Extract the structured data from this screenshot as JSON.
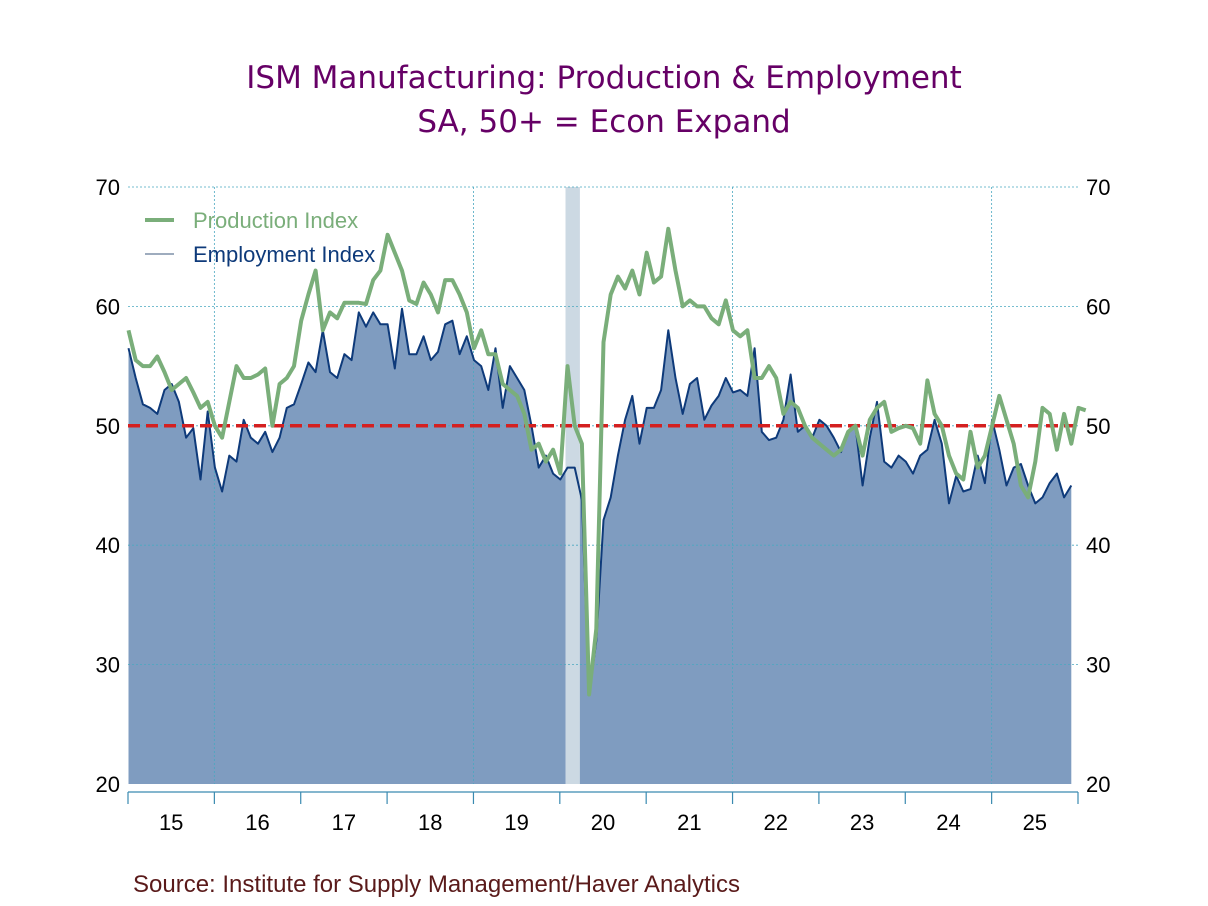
{
  "title_line1": "ISM Manufacturing: Production & Employment",
  "title_line2": "SA, 50+ = Econ Expand",
  "source": "Source:  Institute for Supply Management/Haver Analytics",
  "colors": {
    "title": "#660066",
    "production": "#7aae7a",
    "employment_line": "#0e3a7a",
    "employment_fill": "#7f9cc0",
    "reference_line": "#d42020",
    "recession": "#ccd9e3",
    "grid": "#4aa8c0"
  },
  "chart_data": {
    "type": "line",
    "title": "ISM Manufacturing: Production & Employment",
    "subtitle": "SA, 50+ = Econ Expand",
    "xlabel": "",
    "ylabel": "",
    "ylim": [
      20,
      70
    ],
    "yticks": [
      20,
      30,
      40,
      50,
      60,
      70
    ],
    "y_axis": "both-left-and-right",
    "xticks": [
      "15",
      "16",
      "17",
      "18",
      "19",
      "20",
      "21",
      "22",
      "23",
      "24",
      "25"
    ],
    "x_start": "2015-01",
    "frequency": "monthly",
    "grid": true,
    "legend": {
      "placement": "top-left",
      "entries": [
        "Production Index",
        "Employment Index"
      ]
    },
    "reference_line": {
      "value": 50,
      "style": "dashed",
      "label": "50+ = Econ Expand"
    },
    "recession_shading": [
      {
        "start": "2020-02",
        "end": "2020-04"
      }
    ],
    "series": [
      {
        "name": "Production Index",
        "style": "line",
        "values": [
          58.0,
          55.5,
          55.0,
          55.0,
          55.8,
          54.5,
          53.0,
          53.5,
          54.0,
          52.8,
          51.5,
          52.0,
          50.0,
          49.0,
          52.0,
          55.0,
          54.0,
          54.0,
          54.3,
          54.8,
          50.0,
          53.5,
          54.0,
          55.0,
          58.8,
          61.0,
          63.0,
          58.0,
          59.5,
          59.0,
          60.3,
          60.3,
          60.3,
          60.2,
          62.2,
          63.0,
          66.0,
          64.5,
          63.0,
          60.5,
          60.2,
          62.0,
          61.0,
          59.5,
          62.2,
          62.2,
          61.0,
          59.5,
          56.5,
          58.0,
          56.0,
          56.0,
          53.5,
          53.0,
          52.5,
          51.0,
          48.0,
          48.5,
          47.0,
          48.0,
          46.0,
          55.0,
          50.0,
          48.5,
          27.5,
          33.0,
          57.0,
          61.0,
          62.5,
          61.5,
          63.0,
          61.0,
          64.5,
          62.0,
          62.5,
          66.5,
          63.0,
          60.0,
          60.5,
          60.0,
          60.0,
          59.0,
          58.5,
          60.5,
          58.0,
          57.5,
          58.0,
          54.0,
          54.0,
          55.0,
          54.0,
          51.0,
          52.0,
          51.5,
          50.0,
          49.0,
          48.5,
          48.0,
          47.5,
          48.0,
          49.5,
          50.0,
          47.5,
          50.5,
          51.5,
          52.0,
          49.5,
          49.8,
          50.0,
          49.8,
          48.5,
          53.8,
          51.0,
          50.0,
          47.5,
          46.0,
          45.5,
          49.5,
          46.5,
          47.5,
          50.0,
          52.5,
          50.5,
          48.5,
          45.0,
          44.0,
          47.0,
          51.5,
          51.0,
          48.0,
          51.0,
          48.5,
          51.5,
          51.3
        ]
      },
      {
        "name": "Employment Index",
        "style": "area",
        "values": [
          56.5,
          54.0,
          51.8,
          51.5,
          51.0,
          53.0,
          53.5,
          52.0,
          49.0,
          49.8,
          45.5,
          51.2,
          46.5,
          44.5,
          47.5,
          47.0,
          50.5,
          49.0,
          48.5,
          49.5,
          47.8,
          49.0,
          51.5,
          51.8,
          53.5,
          55.3,
          54.5,
          58.0,
          54.5,
          54.0,
          56.0,
          55.5,
          59.5,
          58.3,
          59.5,
          58.5,
          58.5,
          54.8,
          59.8,
          56.0,
          56.0,
          57.5,
          55.5,
          56.2,
          58.5,
          58.8,
          56.0,
          57.5,
          55.5,
          55.0,
          53.0,
          56.5,
          51.5,
          55.0,
          54.0,
          53.0,
          50.0,
          46.5,
          47.5,
          46.0,
          45.5,
          46.5,
          46.5,
          43.8,
          27.5,
          32.0,
          42.1,
          44.0,
          47.5,
          50.5,
          52.5,
          48.5,
          51.5,
          51.5,
          53.0,
          58.0,
          54.0,
          51.0,
          53.5,
          54.0,
          50.5,
          51.7,
          52.5,
          54.0,
          52.8,
          53.0,
          52.5,
          56.5,
          49.5,
          48.8,
          49.0,
          50.5,
          54.3,
          49.5,
          50.0,
          49.0,
          50.5,
          50.0,
          49.0,
          47.8,
          49.5,
          50.0,
          45.0,
          49.0,
          52.0,
          47.0,
          46.5,
          47.5,
          47.0,
          46.0,
          47.5,
          48.0,
          50.5,
          48.5,
          43.5,
          45.8,
          44.5,
          44.7,
          47.5,
          45.2,
          50.5,
          48.0,
          45.0,
          46.5,
          46.8,
          45.0,
          43.5,
          44.0,
          45.2,
          46.0,
          44.0,
          45.0
        ]
      }
    ]
  }
}
